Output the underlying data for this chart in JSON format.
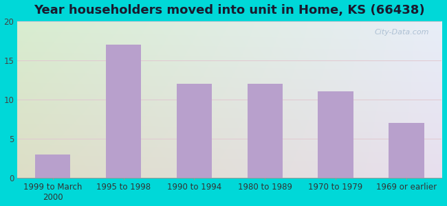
{
  "title": "Year householders moved into unit in Home, KS (66438)",
  "categories": [
    "1999 to March\n2000",
    "1995 to 1998",
    "1990 to 1994",
    "1980 to 1989",
    "1970 to 1979",
    "1969 or earlier"
  ],
  "values": [
    3,
    17,
    12,
    12,
    11,
    7
  ],
  "bar_color": "#b8a0cc",
  "ylim": [
    0,
    20
  ],
  "yticks": [
    0,
    5,
    10,
    15,
    20
  ],
  "background_outer": "#00d8d8",
  "background_inner_topleft": "#d8edd0",
  "background_inner_topright": "#e8eef8",
  "background_inner_bottomleft": "#c8e8c0",
  "background_inner_bottomright": "#dce8f0",
  "title_fontsize": 13,
  "tick_fontsize": 8.5,
  "watermark": "City-Data.com"
}
